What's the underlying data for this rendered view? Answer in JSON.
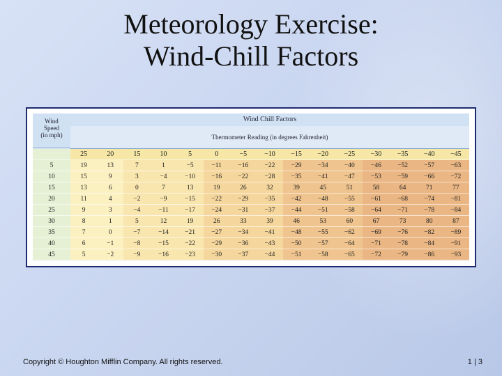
{
  "title": {
    "line1": "Meteorology Exercise:",
    "line2": "Wind-Chill Factors"
  },
  "table": {
    "caption": "Wind Chill Factors",
    "corner_label": [
      "Wind",
      "Speed",
      "(in mph)"
    ],
    "subheader": "Thermometer Reading (in degrees Fahrenheit)",
    "temperatures": [
      "25",
      "20",
      "15",
      "10",
      "5",
      "0",
      "−5",
      "−10",
      "−15",
      "−20",
      "−25",
      "−30",
      "−35",
      "−40",
      "−45"
    ],
    "rows": [
      {
        "speed": "5",
        "values": [
          "19",
          "13",
          "7",
          "1",
          "−5",
          "−11",
          "−16",
          "−22",
          "−29",
          "−34",
          "−40",
          "−46",
          "−52",
          "−57",
          "−63"
        ]
      },
      {
        "speed": "10",
        "values": [
          "15",
          "9",
          "3",
          "−4",
          "−10",
          "−16",
          "−22",
          "−28",
          "−35",
          "−41",
          "−47",
          "−53",
          "−59",
          "−66",
          "−72"
        ]
      },
      {
        "speed": "15",
        "values": [
          "13",
          "6",
          "0",
          "7",
          "13",
          "19",
          "26",
          "32",
          "39",
          "45",
          "51",
          "58",
          "64",
          "71",
          "77"
        ]
      },
      {
        "speed": "20",
        "values": [
          "11",
          "4",
          "−2",
          "−9",
          "−15",
          "−22",
          "−29",
          "−35",
          "−42",
          "−48",
          "−55",
          "−61",
          "−68",
          "−74",
          "−81"
        ]
      },
      {
        "speed": "25",
        "values": [
          "9",
          "3",
          "−4",
          "−11",
          "−17",
          "−24",
          "−31",
          "−37",
          "−44",
          "−51",
          "−58",
          "−64",
          "−71",
          "−78",
          "−84"
        ]
      },
      {
        "speed": "30",
        "values": [
          "8",
          "1",
          "5",
          "12",
          "19",
          "26",
          "33",
          "39",
          "46",
          "53",
          "60",
          "67",
          "73",
          "80",
          "87"
        ]
      },
      {
        "speed": "35",
        "values": [
          "7",
          "0",
          "−7",
          "−14",
          "−21",
          "−27",
          "−34",
          "−41",
          "−48",
          "−55",
          "−62",
          "−69",
          "−76",
          "−82",
          "−89"
        ]
      },
      {
        "speed": "40",
        "values": [
          "6",
          "−1",
          "−8",
          "−15",
          "−22",
          "−29",
          "−36",
          "−43",
          "−50",
          "−57",
          "−64",
          "−71",
          "−78",
          "−84",
          "−91"
        ]
      },
      {
        "speed": "45",
        "values": [
          "5",
          "−2",
          "−9",
          "−16",
          "−23",
          "−30",
          "−37",
          "−44",
          "−51",
          "−58",
          "−65",
          "−72",
          "−79",
          "−86",
          "−93"
        ]
      }
    ]
  },
  "footer": {
    "copyright": "Copyright © Houghton Mifflin Company.  All rights reserved.",
    "page": "1 | 3"
  }
}
